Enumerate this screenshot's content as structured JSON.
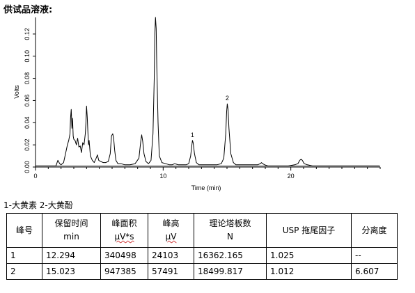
{
  "sample_title": "供试品溶液:",
  "chart_data": {
    "type": "line",
    "xlabel": "Time (min)",
    "ylabel": "Volts",
    "xlim": [
      0,
      27
    ],
    "ylim": [
      0,
      0.135
    ],
    "x_ticks": [
      0,
      10,
      20
    ],
    "y_ticks": [
      0.0,
      0.02,
      0.04,
      0.06,
      0.08,
      0.1,
      0.12
    ],
    "baseline": 0.001,
    "series": [
      {
        "x": [
          0.0,
          1.6,
          1.75,
          1.9,
          2.0,
          2.2,
          2.35,
          2.5,
          2.6,
          2.7,
          2.75,
          2.8,
          2.85,
          2.9,
          2.95,
          3.0,
          3.1,
          3.2,
          3.3,
          3.4,
          3.5,
          3.6,
          3.7,
          3.8,
          3.9,
          3.95,
          4.0,
          4.05,
          4.1,
          4.15,
          4.2,
          4.3,
          4.45,
          4.6,
          4.75,
          4.85,
          4.95,
          5.1,
          5.3,
          5.5,
          5.7,
          5.85,
          5.95,
          6.05,
          6.12,
          6.2,
          6.3,
          6.45,
          6.7,
          7.0,
          7.4,
          7.8,
          8.1,
          8.25,
          8.32,
          8.4,
          8.5,
          8.65,
          8.85,
          9.05,
          9.2,
          9.3,
          9.35,
          9.4,
          9.45,
          9.5,
          9.6,
          9.7,
          9.9,
          10.2,
          10.5,
          10.7,
          10.9,
          11.2,
          11.5,
          11.8,
          12.0,
          12.15,
          12.25,
          12.294,
          12.35,
          12.45,
          12.6,
          12.8,
          13.2,
          13.7,
          14.2,
          14.55,
          14.75,
          14.9,
          14.97,
          15.023,
          15.08,
          15.15,
          15.3,
          15.5,
          15.7,
          16.0,
          16.5,
          17.0,
          17.4,
          17.6,
          17.7,
          17.8,
          17.95,
          18.2,
          19.0,
          19.8,
          20.3,
          20.55,
          20.7,
          20.8,
          20.9,
          21.05,
          21.3,
          21.7,
          22.5,
          24.0,
          25.5,
          26.9
        ],
        "y": [
          0.001,
          0.001,
          0.006,
          0.003,
          0.002,
          0.004,
          0.012,
          0.02,
          0.024,
          0.03,
          0.045,
          0.052,
          0.035,
          0.044,
          0.028,
          0.025,
          0.024,
          0.02,
          0.026,
          0.018,
          0.019,
          0.013,
          0.022,
          0.02,
          0.03,
          0.04,
          0.055,
          0.045,
          0.032,
          0.02,
          0.024,
          0.01,
          0.006,
          0.004,
          0.008,
          0.011,
          0.006,
          0.005,
          0.004,
          0.004,
          0.005,
          0.012,
          0.028,
          0.03,
          0.026,
          0.015,
          0.006,
          0.003,
          0.003,
          0.002,
          0.002,
          0.003,
          0.008,
          0.024,
          0.029,
          0.023,
          0.012,
          0.005,
          0.003,
          0.006,
          0.03,
          0.08,
          0.12,
          0.135,
          0.125,
          0.09,
          0.04,
          0.01,
          0.004,
          0.003,
          0.002,
          0.002,
          0.003,
          0.002,
          0.002,
          0.002,
          0.003,
          0.01,
          0.02,
          0.024,
          0.022,
          0.012,
          0.004,
          0.002,
          0.002,
          0.002,
          0.002,
          0.003,
          0.008,
          0.03,
          0.05,
          0.057,
          0.052,
          0.035,
          0.012,
          0.004,
          0.002,
          0.002,
          0.002,
          0.002,
          0.002,
          0.003,
          0.004,
          0.003,
          0.002,
          0.001,
          0.001,
          0.001,
          0.002,
          0.003,
          0.006,
          0.007,
          0.006,
          0.003,
          0.002,
          0.001,
          0.001,
          0.001,
          0.001,
          0.001
        ]
      }
    ],
    "annotations": [
      {
        "label": "1",
        "x": 12.294,
        "y": 0.024
      },
      {
        "label": "2",
        "x": 15.023,
        "y": 0.057
      }
    ]
  },
  "legend_text": "1-大黄素  2-大黄酚",
  "table": {
    "headers": [
      [
        "峰号"
      ],
      [
        "保留时间",
        "min"
      ],
      [
        "峰面积",
        "μV*s"
      ],
      [
        "峰高",
        "μV"
      ],
      [
        "理论塔板数",
        "N"
      ],
      [
        "USP 拖尾因子"
      ],
      [
        "分离度"
      ]
    ],
    "rows": [
      [
        "1",
        "12.294",
        "340498",
        "24103",
        "16362.165",
        "1.025",
        "--"
      ],
      [
        "2",
        "15.023",
        "947385",
        "57491",
        "18499.817",
        "1.012",
        "6.607"
      ]
    ]
  }
}
